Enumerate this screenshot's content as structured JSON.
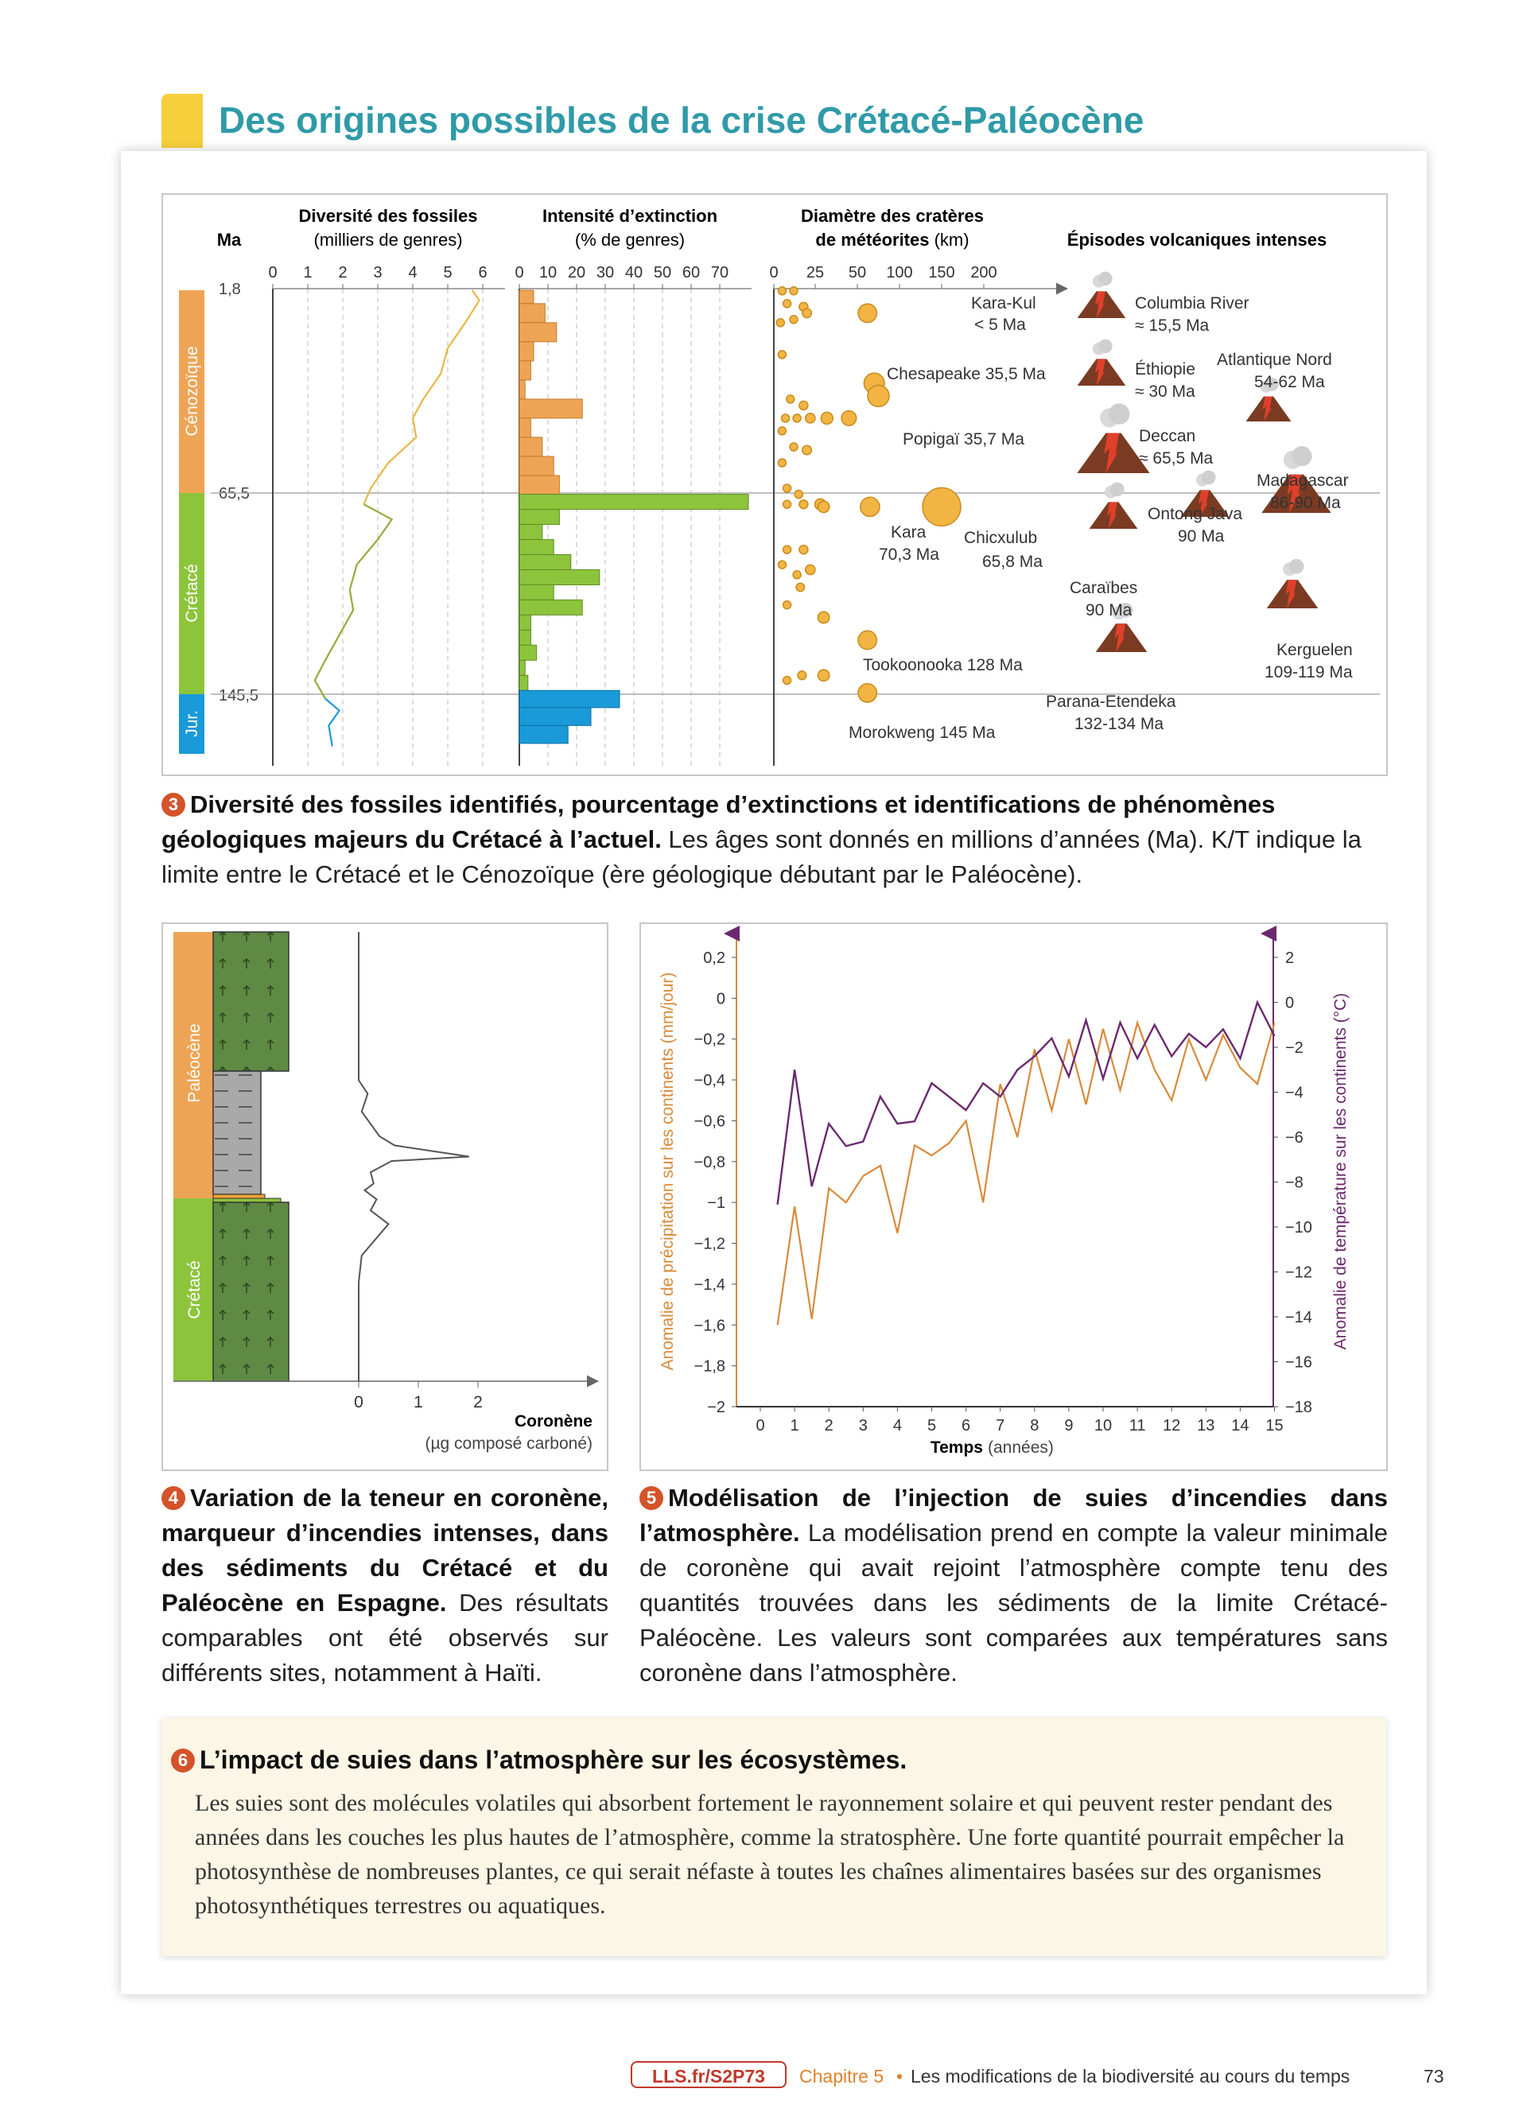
{
  "page": {
    "title": "Des origines possibles de la crise Crétacé-Paléocène",
    "footer": {
      "link": "LLS.fr/S2P73",
      "chapter": "Chapitre 5",
      "bullet": "•",
      "chapter_title": "Les modifications de la biodiversité au cours du temps",
      "page_number": "73"
    }
  },
  "doc3": {
    "ma_label": "Ma",
    "col_diversity": {
      "title": "Diversité des fossiles",
      "subtitle": "(milliers de genres)",
      "ticks": [
        "0",
        "1",
        "2",
        "3",
        "4",
        "5",
        "6"
      ]
    },
    "col_extinction": {
      "title": "Intensité d’extinction",
      "subtitle": "(% de genres)",
      "ticks": [
        "0",
        "10",
        "20",
        "30",
        "40",
        "50",
        "60",
        "70"
      ]
    },
    "col_craters": {
      "title": "Diamètre des cratères",
      "subtitle_bold": "de météorites",
      "subtitle_unit": " (km)",
      "ticks": [
        "0",
        "25",
        "50",
        "100",
        "150",
        "200"
      ]
    },
    "col_volcanic": {
      "title": "Épisodes volcaniques intenses"
    },
    "ages": [
      "1,8",
      "65,5",
      "145,5"
    ],
    "periods": [
      {
        "name": "Cénozoïque",
        "color": "#eea455"
      },
      {
        "name": "Crétacé",
        "color": "#8cc43c"
      },
      {
        "name": "Jur.",
        "color": "#1a9ad8"
      }
    ],
    "chart_data": {
      "type": "line",
      "title": "Diversité des fossiles (milliers de genres)",
      "y_axis": "Ma",
      "series": [
        {
          "name": "Cénozoïque",
          "color": "#e7b84a",
          "points": [
            [
              5.7,
              1.8
            ],
            [
              5.9,
              5
            ],
            [
              5.5,
              12
            ],
            [
              5.0,
              20
            ],
            [
              4.8,
              28
            ],
            [
              4.3,
              36
            ],
            [
              4.0,
              42
            ],
            [
              4.1,
              48
            ],
            [
              3.3,
              56
            ],
            [
              2.8,
              64
            ],
            [
              2.6,
              70
            ]
          ]
        },
        {
          "name": "Crétacé",
          "color": "#8fae3a",
          "points": [
            [
              2.6,
              70
            ],
            [
              3.4,
              76
            ],
            [
              3.0,
              84
            ],
            [
              2.4,
              94
            ],
            [
              2.2,
              104
            ],
            [
              2.3,
              112
            ],
            [
              1.9,
              122
            ],
            [
              1.5,
              132
            ],
            [
              1.2,
              140
            ],
            [
              1.5,
              147
            ]
          ]
        },
        {
          "name": "Jurassique",
          "color": "#1a9ad8",
          "points": [
            [
              1.5,
              147
            ],
            [
              1.9,
              151
            ],
            [
              1.6,
              156
            ],
            [
              1.7,
              163
            ]
          ]
        }
      ]
    },
    "extinction_data": {
      "type": "bar",
      "bins_ma": [
        [
          1.8,
          6
        ],
        [
          6,
          12
        ],
        [
          12,
          18
        ],
        [
          18,
          24
        ],
        [
          24,
          30
        ],
        [
          30,
          36
        ],
        [
          36,
          42
        ],
        [
          42,
          48
        ],
        [
          48,
          54
        ],
        [
          54,
          60
        ],
        [
          60,
          66
        ],
        [
          66,
          72
        ],
        [
          72,
          78
        ],
        [
          78,
          84
        ],
        [
          84,
          90
        ],
        [
          90,
          96
        ],
        [
          96,
          102
        ],
        [
          102,
          108
        ],
        [
          108,
          114
        ],
        [
          114,
          120
        ],
        [
          120,
          126
        ],
        [
          126,
          132
        ],
        [
          132,
          138
        ],
        [
          138,
          144
        ],
        [
          144,
          150
        ],
        [
          150,
          156
        ],
        [
          156,
          162
        ]
      ],
      "values": [
        5,
        9,
        13,
        5,
        4,
        2,
        22,
        4,
        8,
        12,
        14,
        80,
        14,
        8,
        12,
        18,
        28,
        12,
        22,
        4,
        4,
        6,
        2,
        3,
        35,
        25,
        17
      ],
      "colors_by_period": [
        "Cénozoïque",
        "Crétacé",
        "Jur."
      ]
    },
    "crater_labels": [
      {
        "name": "Kara-Kul",
        "age": "< 5 Ma"
      },
      {
        "name": "Chesapeake 35,5 Ma"
      },
      {
        "name": "Popigaï 35,7 Ma"
      },
      {
        "name": "Kara",
        "age": "70,3 Ma"
      },
      {
        "name": "Chicxulub",
        "age": "65,8 Ma"
      },
      {
        "name": "Tookoonooka 128 Ma"
      },
      {
        "name": "Morokweng 145 Ma"
      }
    ],
    "crater_data": {
      "type": "scatter",
      "x_unit": "km",
      "y_unit": "Ma",
      "points": [
        {
          "d": 5,
          "age": 2
        },
        {
          "d": 12,
          "age": 2
        },
        {
          "d": 8,
          "age": 6
        },
        {
          "d": 18,
          "age": 7
        },
        {
          "d": 4,
          "age": 12
        },
        {
          "d": 12,
          "age": 11
        },
        {
          "d": 20,
          "age": 9
        },
        {
          "d": 5,
          "age": 22
        },
        {
          "d": 62,
          "age": 9
        },
        {
          "d": 70,
          "age": 31
        },
        {
          "d": 75,
          "age": 35
        },
        {
          "d": 10,
          "age": 36
        },
        {
          "d": 18,
          "age": 38
        },
        {
          "d": 7,
          "age": 42
        },
        {
          "d": 14,
          "age": 42
        },
        {
          "d": 22,
          "age": 42
        },
        {
          "d": 32,
          "age": 42
        },
        {
          "d": 45,
          "age": 42
        },
        {
          "d": 5,
          "age": 46
        },
        {
          "d": 12,
          "age": 51
        },
        {
          "d": 20,
          "age": 52
        },
        {
          "d": 5,
          "age": 56
        },
        {
          "d": 8,
          "age": 64
        },
        {
          "d": 15,
          "age": 66
        },
        {
          "d": 18,
          "age": 70
        },
        {
          "d": 28,
          "age": 70
        },
        {
          "d": 8,
          "age": 70
        },
        {
          "d": 30,
          "age": 71
        },
        {
          "d": 65,
          "age": 71
        },
        {
          "d": 150,
          "age": 71
        },
        {
          "d": 8,
          "age": 88
        },
        {
          "d": 18,
          "age": 88
        },
        {
          "d": 5,
          "age": 94
        },
        {
          "d": 14,
          "age": 98
        },
        {
          "d": 22,
          "age": 96
        },
        {
          "d": 16,
          "age": 103
        },
        {
          "d": 8,
          "age": 110
        },
        {
          "d": 30,
          "age": 115
        },
        {
          "d": 62,
          "age": 124
        },
        {
          "d": 30,
          "age": 138
        },
        {
          "d": 17,
          "age": 138
        },
        {
          "d": 8,
          "age": 140
        },
        {
          "d": 62,
          "age": 145
        }
      ]
    },
    "volcanoes": [
      {
        "name": "Columbia River",
        "age": "≈ 15,5 Ma"
      },
      {
        "name": "Éthiopie",
        "age": "≈ 30 Ma"
      },
      {
        "name": "Atlantique Nord",
        "age": "54-62 Ma"
      },
      {
        "name": "Deccan",
        "age": "≈ 65,5 Ma"
      },
      {
        "name": "Madagascar",
        "age": "86-90 Ma"
      },
      {
        "name": "Ontong Java",
        "age": "90 Ma"
      },
      {
        "name": "Caraïbes",
        "age": "90 Ma"
      },
      {
        "name": "Kerguelen",
        "age": "109-119 Ma"
      },
      {
        "name": "Parana-Etendeka",
        "age": "132-134 Ma"
      }
    ],
    "caption": {
      "number": "3",
      "bold": "Diversité des fossiles identifiés, pourcentage d’extinctions et identifications de phénomènes géologiques majeurs du Crétacé à l’actuel.",
      "text": " Les âges sont donnés en millions d’années (Ma). K/T indique la limite entre le Crétacé et le Cénozoïque (ère géologique débutant par le Paléocène)."
    }
  },
  "doc4": {
    "periods": [
      "Paléocène",
      "Crétacé"
    ],
    "x_ticks": [
      "0",
      "1",
      "2"
    ],
    "x_label": "Coronène",
    "x_unit": "(µg composé carboné)",
    "chart_data": {
      "type": "line",
      "x_unit": "µg composé carboné",
      "y_unit": "depth (relative)",
      "points": [
        [
          0,
          0
        ],
        [
          0,
          0.33
        ],
        [
          0.15,
          0.36
        ],
        [
          0.05,
          0.4
        ],
        [
          0.35,
          0.455
        ],
        [
          0.6,
          0.475
        ],
        [
          1.85,
          0.5
        ],
        [
          0.55,
          0.51
        ],
        [
          0.2,
          0.535
        ],
        [
          0.25,
          0.56
        ],
        [
          0.1,
          0.575
        ],
        [
          0.3,
          0.595
        ],
        [
          0.2,
          0.62
        ],
        [
          0.5,
          0.65
        ],
        [
          0.05,
          0.72
        ],
        [
          0,
          0.78
        ],
        [
          0,
          1
        ]
      ],
      "xlim": [
        0,
        2.5
      ]
    },
    "caption": {
      "number": "4",
      "bold": "Variation de la teneur en coronène, marqueur d’incendies intenses, dans des sédiments du Crétacé et du Paléocène en Espagne.",
      "text": " Des résultats comparables ont été observés sur différents sites, notamment à Haïti."
    }
  },
  "doc5": {
    "y_left_ticks": [
      "0,2",
      "0",
      "−0,2",
      "−0,4",
      "−0,6",
      "−0,8",
      "−1",
      "−1,2",
      "−1,4",
      "−1,6",
      "−1,8",
      "−2"
    ],
    "y_right_ticks": [
      "2",
      "0",
      "−2",
      "−4",
      "−6",
      "−8",
      "−10",
      "−12",
      "−14",
      "−16",
      "−18"
    ],
    "x_ticks": [
      "0",
      "1",
      "2",
      "3",
      "4",
      "5",
      "6",
      "7",
      "8",
      "9",
      "10",
      "11",
      "12",
      "13",
      "14",
      "15"
    ],
    "y_left_label": "Anomalie de précipitation sur les continents (mm/jour)",
    "y_right_label": "Anomalie de température sur les continents (°C)",
    "x_label": "Temps",
    "x_unit": "(années)",
    "chart_data": {
      "type": "line",
      "x": [
        0.5,
        1.0,
        1.5,
        2.0,
        2.5,
        3.0,
        3.5,
        4.0,
        4.5,
        5.0,
        5.5,
        6.0,
        6.5,
        7.0,
        7.5,
        8.0,
        8.5,
        9.0,
        9.5,
        10.0,
        10.5,
        11.0,
        11.5,
        12.0,
        12.5,
        13.0,
        13.5,
        14.0,
        14.5,
        15.0
      ],
      "series": [
        {
          "name": "précipitation",
          "axis": "left",
          "color": "#d88a3a",
          "values": [
            -1.6,
            -1.02,
            -1.57,
            -0.93,
            -1.0,
            -0.87,
            -0.82,
            -1.15,
            -0.72,
            -0.77,
            -0.71,
            -0.6,
            -1.0,
            -0.42,
            -0.68,
            -0.25,
            -0.55,
            -0.2,
            -0.52,
            -0.15,
            -0.45,
            -0.12,
            -0.35,
            -0.5,
            -0.2,
            -0.4,
            -0.18,
            -0.34,
            -0.42,
            -0.12
          ]
        },
        {
          "name": "température",
          "axis": "right",
          "color": "#6b2a6e",
          "values": [
            -9,
            -3,
            -8.2,
            -5.4,
            -6.4,
            -6.2,
            -4.2,
            -5.4,
            -5.3,
            -3.6,
            -4.2,
            -4.8,
            -3.6,
            -4.2,
            -3.0,
            -2.4,
            -1.6,
            -3.3,
            -0.8,
            -3.4,
            -0.9,
            -2.5,
            -1.0,
            -2.4,
            -1.4,
            -2.0,
            -1.2,
            -2.5,
            0.0,
            -1.5
          ]
        }
      ],
      "xlim": [
        0,
        15
      ],
      "ylim_left": [
        -2,
        0.2
      ],
      "ylim_right": [
        -18,
        2
      ]
    },
    "caption": {
      "number": "5",
      "bold": "Modélisation de l’injection de suies d’incendies dans l’atmosphère.",
      "text": " La modélisation prend en compte la valeur minimale de coronène qui avait rejoint l’atmosphère compte tenu des quantités trouvées dans les sédiments de la limite Crétacé-Paléocène. Les valeurs sont comparées aux températures sans coronène dans l’atmosphère."
    }
  },
  "doc6": {
    "number": "6",
    "title": "L’impact de suies dans l’atmosphère sur les écosystèmes.",
    "text": "Les suies sont des molécules volatiles qui absorbent fortement le rayonnement solaire et qui peuvent rester pendant des années dans les couches les plus hautes de l’atmosphère, comme la stratosphère. Une forte quantité pourrait empêcher la photosynthèse de nombreuses plantes, ce qui serait néfaste à toutes les chaînes alimentaires basées sur des organismes photosynthétiques terrestres ou aquatiques."
  }
}
